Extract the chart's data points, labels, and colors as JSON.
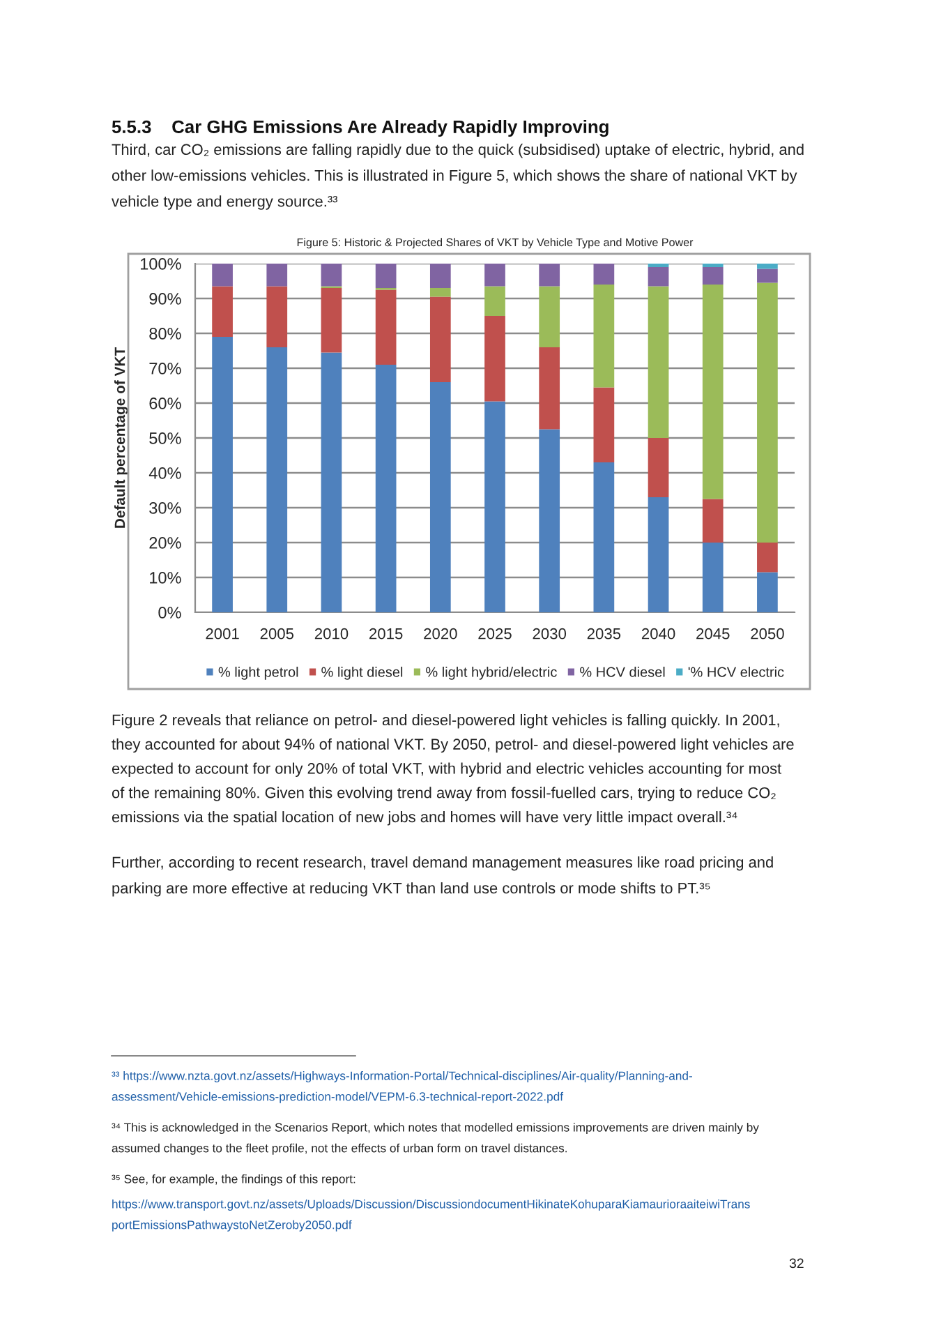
{
  "chart_data": {
    "type": "bar",
    "stacked": true,
    "title": "Figure 5: Historic & Projected Shares of VKT by Vehicle Type and Motive Power",
    "ylabel": "Default percentage of VKT",
    "categories": [
      "2001",
      "2005",
      "2010",
      "2015",
      "2020",
      "2025",
      "2030",
      "2035",
      "2040",
      "2045",
      "2050"
    ],
    "series": [
      {
        "name": "% light petrol",
        "color": "#4f81bd",
        "values": [
          79,
          76,
          74.5,
          71,
          66,
          60.5,
          52.5,
          43,
          33,
          20,
          11.5
        ]
      },
      {
        "name": "% light diesel",
        "color": "#c0504d",
        "values": [
          14.5,
          17.5,
          18.5,
          21.5,
          24.5,
          24.5,
          23.5,
          21.5,
          17,
          12.5,
          8.5
        ]
      },
      {
        "name": "% light hybrid/electric",
        "color": "#9bbb59",
        "values": [
          0,
          0,
          0.5,
          0.5,
          2.5,
          8.5,
          17.5,
          29.5,
          43.5,
          61.5,
          74.5
        ]
      },
      {
        "name": "% HCV diesel",
        "color": "#8064a2",
        "values": [
          6.5,
          6.5,
          6.5,
          7,
          7,
          6.5,
          6.5,
          6,
          5.5,
          5,
          4
        ]
      },
      {
        "name": "'% HCV electric",
        "color": "#4bacc6",
        "values": [
          0,
          0,
          0,
          0,
          0,
          0,
          0,
          0,
          1,
          1,
          1.5
        ]
      }
    ],
    "ylim": [
      0,
      100
    ],
    "yticks": [
      {
        "value": 0,
        "label": "0%"
      },
      {
        "value": 10,
        "label": "10%"
      },
      {
        "value": 20,
        "label": "20%"
      },
      {
        "value": 30,
        "label": "30%"
      },
      {
        "value": 40,
        "label": "40%"
      },
      {
        "value": 50,
        "label": "50%"
      },
      {
        "value": 60,
        "label": "60%"
      },
      {
        "value": 70,
        "label": "70%"
      },
      {
        "value": 80,
        "label": "80%"
      },
      {
        "value": 90,
        "label": "90%"
      },
      {
        "value": 100,
        "label": "100%"
      }
    ],
    "grid": "y",
    "legend": "bottom",
    "annotations": [
      "5.5.3    Car GHG Emissions Are Already Rapidly Improving",
      "Third, car CO₂ emissions are falling rapidly due to the quick (subsidised) uptake of electric, hybrid, and\nother low-emissions vehicles. This is illustrated in Figure 5, which shows the share of national VKT by\nvehicle type and energy source.³³",
      "Figure 2 reveals that reliance on petrol- and diesel-powered light vehicles is falling quickly. In 2001,\nthey accounted for about 94% of national VKT. By 2050, petrol- and diesel-powered light vehicles are\nexpected to account for only 20% of total VKT, with hybrid and electric vehicles accounting for most\nof the remaining 80%. Given this evolving trend away from fossil-fuelled cars, trying to reduce CO₂\nemissions via the spatial location of new jobs and homes will have very little impact overall.³⁴",
      "Further, according to recent research, travel demand management measures like road pricing and\nparking are more effective at reducing VKT than land use controls or mode shifts to PT.³⁵",
      "³³ https://www.nzta.govt.nz/assets/Highways-Information-Portal/Technical-disciplines/Air-quality/Planning-and-\nassessment/Vehicle-emissions-prediction-model/VEPM-6.3-technical-report-2022.pdf",
      "³⁴ This is acknowledged in the Scenarios Report, which notes that modelled emissions improvements are driven mainly by\nassumed changes to the fleet profile, not the effects of urban form on travel distances.",
      "³⁵ See, for example, the findings of this report:",
      "https://www.transport.govt.nz/assets/Uploads/Discussion/DiscussiondocumentHikinateKohuparaKiamaurioraaiteiwiTrans\nportEmissionsPathwaystoNetZeroby2050.pdf",
      "32"
    ]
  }
}
